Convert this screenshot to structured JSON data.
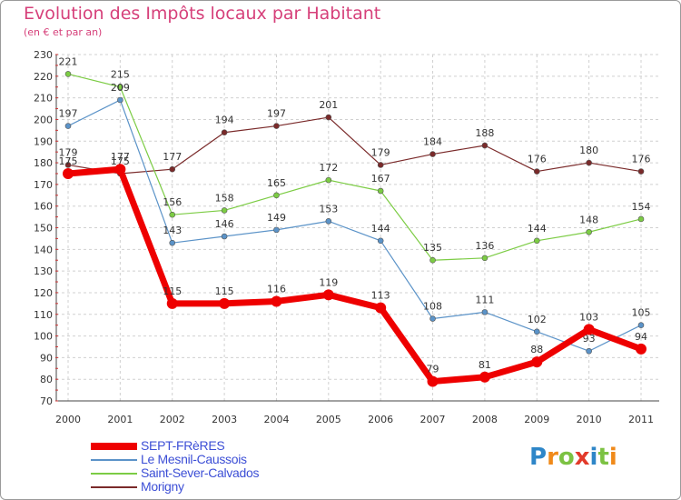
{
  "chart_data": {
    "type": "line",
    "title": "Evolution des Impôts locaux par Habitant",
    "subtitle": "(en € et par an)",
    "xlabel": "",
    "ylabel": "",
    "ylim": [
      70,
      230
    ],
    "yticks": [
      "70",
      "80",
      "90",
      "100",
      "110",
      "120",
      "130",
      "140",
      "150",
      "160",
      "170",
      "180",
      "190",
      "200",
      "210",
      "220",
      "230"
    ],
    "grid": true,
    "legend_position": "bottom-left",
    "categories": [
      "2000",
      "2001",
      "2002",
      "2003",
      "2004",
      "2005",
      "2006",
      "2007",
      "2008",
      "2009",
      "2010",
      "2011"
    ],
    "series": [
      {
        "name": "Morigny",
        "color": "#7a2a2a",
        "values": [
          179,
          175,
          177,
          194,
          197,
          201,
          179,
          184,
          188,
          176,
          180,
          176
        ],
        "labels": [
          "179",
          "175",
          "177",
          "194",
          "197",
          "201",
          "179",
          "184",
          "188",
          "176",
          "180",
          "176"
        ]
      },
      {
        "name": "Saint-Sever-Calvados",
        "color": "#7ccc44",
        "values": [
          221,
          215,
          156,
          158,
          165,
          172,
          167,
          135,
          136,
          144,
          148,
          154
        ],
        "labels": [
          "221",
          "215",
          "156",
          "158",
          "165",
          "172",
          "167",
          "135",
          "136",
          "144",
          "148",
          "154"
        ]
      },
      {
        "name": "Le Mesnil-Caussois",
        "color": "#5b93c8",
        "values": [
          197,
          209,
          143,
          146,
          149,
          153,
          144,
          108,
          111,
          102,
          93,
          105
        ],
        "labels": [
          "197",
          "209",
          "143",
          "146",
          "149",
          "153",
          "144",
          "108",
          "111",
          "102",
          "93",
          "105"
        ]
      },
      {
        "name": "SEPT-FRèRES",
        "color": "#ee0000",
        "values": [
          175,
          177,
          115,
          115,
          116,
          119,
          113,
          79,
          81,
          88,
          103,
          94
        ],
        "labels": [
          "175",
          "177",
          "115",
          "115",
          "116",
          "119",
          "113",
          "79",
          "81",
          "88",
          "103",
          "94"
        ]
      }
    ]
  },
  "legend": [
    {
      "label": "SEPT-FRèRES",
      "color": "#ee0000"
    },
    {
      "label": "Le Mesnil-Caussois",
      "color": "#5b93c8"
    },
    {
      "label": "Saint-Sever-Calvados",
      "color": "#7ccc44"
    },
    {
      "label": "Morigny",
      "color": "#7a2a2a"
    }
  ],
  "logo": {
    "letters": [
      "P",
      "r",
      "o",
      "x",
      "i",
      "t",
      "i"
    ],
    "colors": [
      "#2e86c8",
      "#f08a1a",
      "#7cc243",
      "#e23a2a",
      "#2e86c8",
      "#7cc243",
      "#f08a1a"
    ]
  }
}
